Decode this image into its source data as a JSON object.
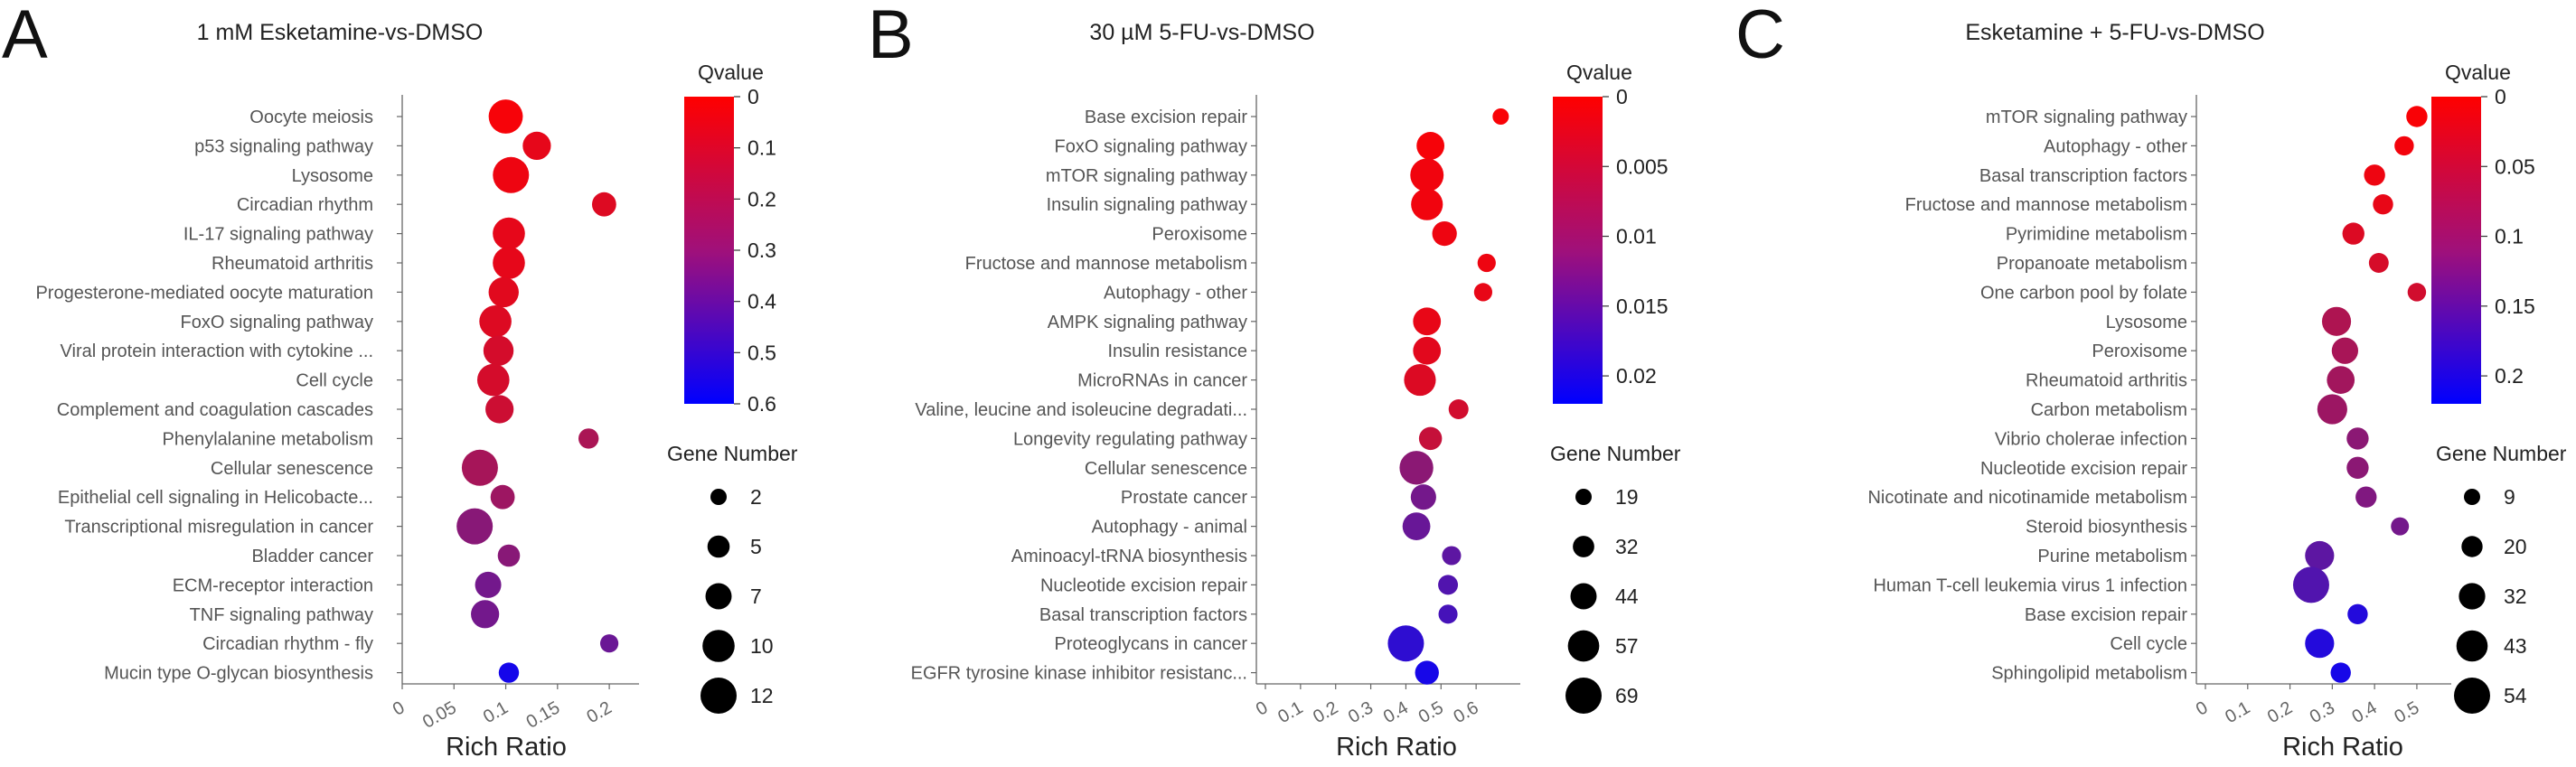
{
  "chart_data": [
    {
      "type": "scatter",
      "panel": "A",
      "title": "1 mM Esketamine-vs-DMSO",
      "xlabel": "Rich Ratio",
      "ylabel": "",
      "xlim": [
        0,
        0.22
      ],
      "xticks": [
        0,
        0.05,
        0.1,
        0.15,
        0.2
      ],
      "xtick_labels": [
        "0",
        "0.05",
        "0.1",
        "0.15",
        "0.2"
      ],
      "categories": [
        "Oocyte meiosis",
        "p53 signaling pathway",
        "Lysosome",
        "Circadian rhythm",
        "IL-17 signaling pathway",
        "Rheumatoid arthritis",
        "Progesterone-mediated oocyte maturation",
        "FoxO signaling pathway",
        "Viral protein interaction with cytokine ...",
        "Cell cycle",
        "Complement and coagulation cascades",
        "Phenylalanine metabolism",
        "Cellular senescence",
        "Epithelial cell signaling in Helicobacte...",
        "Transcriptional misregulation in cancer",
        "Bladder cancer",
        "ECM-receptor interaction",
        "TNF signaling pathway",
        "Circadian rhythm - fly",
        "Mucin type O-glycan biosynthesis"
      ],
      "rich_ratio": [
        0.1,
        0.13,
        0.105,
        0.195,
        0.103,
        0.103,
        0.098,
        0.09,
        0.093,
        0.088,
        0.094,
        0.18,
        0.075,
        0.097,
        0.07,
        0.103,
        0.083,
        0.08,
        0.2,
        0.103
      ],
      "qvalue": [
        0.02,
        0.06,
        0.04,
        0.08,
        0.06,
        0.06,
        0.07,
        0.08,
        0.1,
        0.1,
        0.12,
        0.2,
        0.21,
        0.23,
        0.28,
        0.28,
        0.33,
        0.33,
        0.35,
        0.55
      ],
      "gene_number": [
        11,
        8,
        12,
        6,
        10,
        10,
        9,
        10,
        9,
        10,
        8,
        4,
        12,
        6,
        12,
        5,
        7,
        8,
        3,
        4
      ],
      "color_legend": {
        "title": "Qvalue",
        "min": 0,
        "max": 0.6,
        "ticks": [
          "0",
          "0.1",
          "0.2",
          "0.3",
          "0.4",
          "0.5",
          "0.6"
        ],
        "low_color": "#ff0000",
        "high_color": "#0000ff"
      },
      "size_legend": {
        "title": "Gene Number",
        "values": [
          2,
          5,
          7,
          10,
          12
        ],
        "labels": [
          "2",
          "5",
          "7",
          "10",
          "12"
        ]
      }
    },
    {
      "type": "scatter",
      "panel": "B",
      "title": "30 µM 5-FU-vs-DMSO",
      "xlabel": "Rich Ratio",
      "ylabel": "",
      "xlim": [
        0,
        0.7
      ],
      "xticks": [
        0,
        0.1,
        0.2,
        0.3,
        0.4,
        0.5,
        0.6
      ],
      "xtick_labels": [
        "0",
        "0.1",
        "0.2",
        "0.3",
        "0.4",
        "0.5",
        "0.6"
      ],
      "categories": [
        "Base excision repair",
        "FoxO signaling pathway",
        "mTOR signaling pathway",
        "Insulin signaling pathway",
        "Peroxisome",
        "Fructose and mannose metabolism",
        "Autophagy - other",
        "AMPK signaling pathway",
        "Insulin resistance",
        "MicroRNAs in cancer",
        "Valine, leucine and isoleucine degradati...",
        "Longevity regulating pathway",
        "Cellular senescence",
        "Prostate cancer",
        "Autophagy - animal",
        "Aminoacyl-tRNA biosynthesis",
        "Nucleotide excision repair",
        "Basal transcription factors",
        "Proteoglycans in cancer",
        "EGFR tyrosine kinase inhibitor resistanc..."
      ],
      "rich_ratio": [
        0.67,
        0.47,
        0.46,
        0.46,
        0.51,
        0.63,
        0.62,
        0.46,
        0.46,
        0.44,
        0.55,
        0.47,
        0.43,
        0.45,
        0.43,
        0.53,
        0.52,
        0.52,
        0.4,
        0.46
      ],
      "qvalue": [
        0.0005,
        0.0008,
        0.0012,
        0.0012,
        0.0015,
        0.0015,
        0.002,
        0.002,
        0.0025,
        0.003,
        0.004,
        0.005,
        0.01,
        0.012,
        0.013,
        0.014,
        0.015,
        0.016,
        0.018,
        0.02
      ],
      "gene_number": [
        19,
        48,
        62,
        58,
        40,
        24,
        24,
        48,
        48,
        58,
        28,
        36,
        63,
        42,
        48,
        26,
        28,
        26,
        69,
        38
      ],
      "color_legend": {
        "title": "Qvalue",
        "min": 0,
        "max": 0.022,
        "ticks": [
          "0",
          "0.005",
          "0.01",
          "0.015",
          "0.02"
        ],
        "low_color": "#ff0000",
        "high_color": "#0000ff"
      },
      "size_legend": {
        "title": "Gene Number",
        "values": [
          19,
          32,
          44,
          57,
          69
        ],
        "labels": [
          "19",
          "32",
          "44",
          "57",
          "69"
        ]
      }
    },
    {
      "type": "scatter",
      "panel": "C",
      "title": "Esketamine + 5-FU-vs-DMSO",
      "xlabel": "Rich Ratio",
      "ylabel": "",
      "xlim": [
        0,
        0.56
      ],
      "xticks": [
        0,
        0.1,
        0.2,
        0.3,
        0.4,
        0.5
      ],
      "xtick_labels": [
        "0",
        "0.1",
        "0.2",
        "0.3",
        "0.4",
        "0.5"
      ],
      "categories": [
        "mTOR signaling pathway",
        "Autophagy - other",
        "Basal transcription factors",
        "Fructose and mannose metabolism",
        "Pyrimidine metabolism",
        "Propanoate metabolism",
        "One carbon pool by folate",
        "Lysosome",
        "Peroxisome",
        "Rheumatoid arthritis",
        "Carbon metabolism",
        "Vibrio cholerae infection",
        "Nucleotide excision repair",
        "Nicotinate and nicotinamide metabolism",
        "Steroid biosynthesis",
        "Purine metabolism",
        "Human T-cell leukemia virus 1 infection",
        "Base excision repair",
        "Cell cycle",
        "Sphingolipid metabolism"
      ],
      "rich_ratio": [
        0.5,
        0.47,
        0.4,
        0.42,
        0.35,
        0.41,
        0.5,
        0.31,
        0.33,
        0.32,
        0.3,
        0.36,
        0.36,
        0.38,
        0.46,
        0.27,
        0.25,
        0.36,
        0.27,
        0.32
      ],
      "qvalue": [
        0.005,
        0.01,
        0.015,
        0.02,
        0.03,
        0.035,
        0.04,
        0.07,
        0.075,
        0.08,
        0.085,
        0.1,
        0.1,
        0.11,
        0.12,
        0.14,
        0.15,
        0.19,
        0.19,
        0.2
      ],
      "gene_number": [
        20,
        16,
        20,
        18,
        22,
        17,
        14,
        38,
        32,
        35,
        40,
        22,
        22,
        20,
        13,
        38,
        54,
        18,
        38,
        18
      ],
      "color_legend": {
        "title": "Qvalue",
        "min": 0,
        "max": 0.22,
        "ticks": [
          "0",
          "0.05",
          "0.1",
          "0.15",
          "0.2"
        ],
        "low_color": "#ff0000",
        "high_color": "#0000ff"
      },
      "size_legend": {
        "title": "Gene Number",
        "values": [
          9,
          20,
          32,
          43,
          54
        ],
        "labels": [
          "9",
          "20",
          "32",
          "43",
          "54"
        ]
      }
    }
  ]
}
